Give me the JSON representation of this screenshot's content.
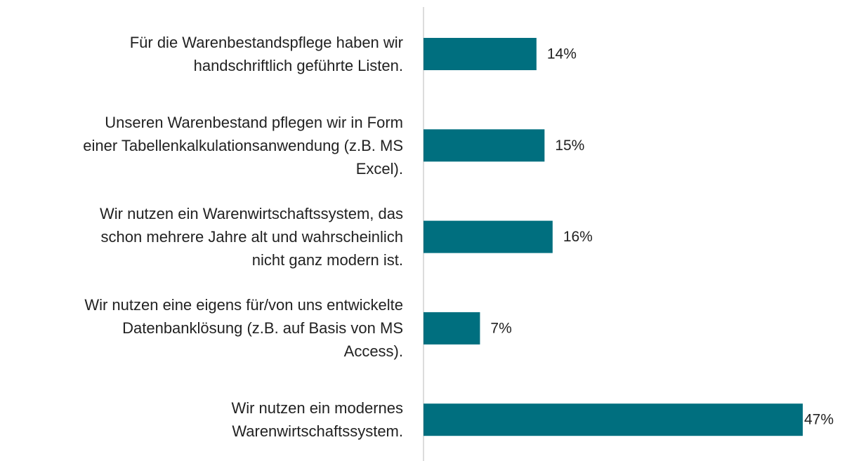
{
  "chart_data": {
    "type": "bar",
    "orientation": "horizontal",
    "categories": [
      "Für die Warenbestandspflege haben wir\nhandschriftlich geführte Listen.",
      "Unseren Warenbestand pflegen wir in Form\neiner Tabellenkalkulationsanwendung (z.B. MS\nExcel).",
      "Wir nutzen ein Warenwirtschaftssystem, das\nschon mehrere Jahre alt und wahrscheinlich\nnicht ganz modern ist.",
      "Wir nutzen eine eigens für/von uns entwickelte\nDatenbanklösung (z.B. auf Basis von MS\nAccess).",
      "Wir nutzen ein modernes\nWarenwirtschaftssystem."
    ],
    "values": [
      14,
      15,
      16,
      7,
      47
    ],
    "value_labels": [
      "14%",
      "15%",
      "16%",
      "7%",
      "47%"
    ],
    "color": "#006f7f"
  }
}
